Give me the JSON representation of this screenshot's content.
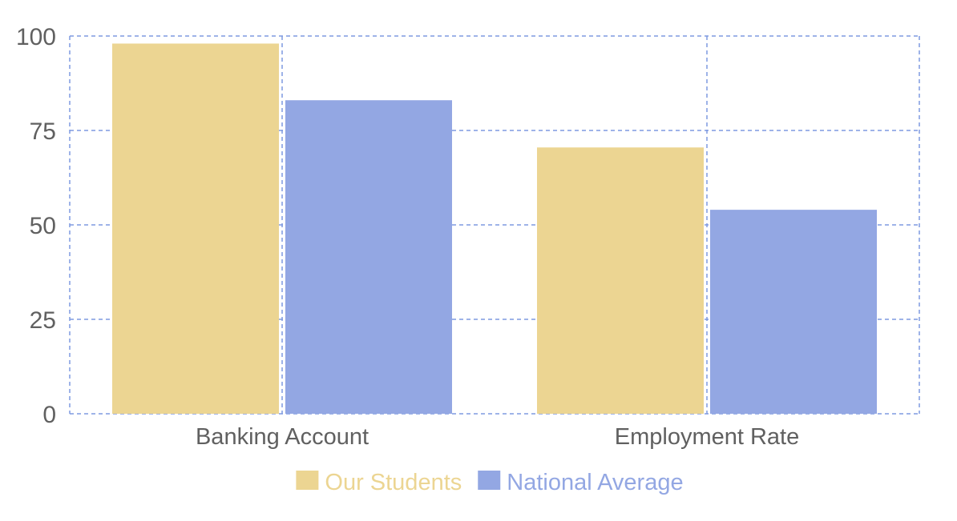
{
  "chart_data": {
    "type": "bar",
    "title": "",
    "xlabel": "",
    "ylabel": "",
    "categories": [
      "Banking Account",
      "Employment Rate"
    ],
    "series": [
      {
        "name": "Our Students",
        "values": [
          98,
          70.5
        ],
        "color": "#ecd592"
      },
      {
        "name": "National Average",
        "values": [
          83,
          54
        ],
        "color": "#93a7e3"
      }
    ],
    "ylim": [
      0,
      100
    ],
    "yticks": [
      "0",
      "25",
      "50",
      "75",
      "100"
    ],
    "grid": true,
    "grid_color": "#7f9ae0",
    "tick_label_color": "#606060",
    "legend_position": "bottom-center"
  }
}
